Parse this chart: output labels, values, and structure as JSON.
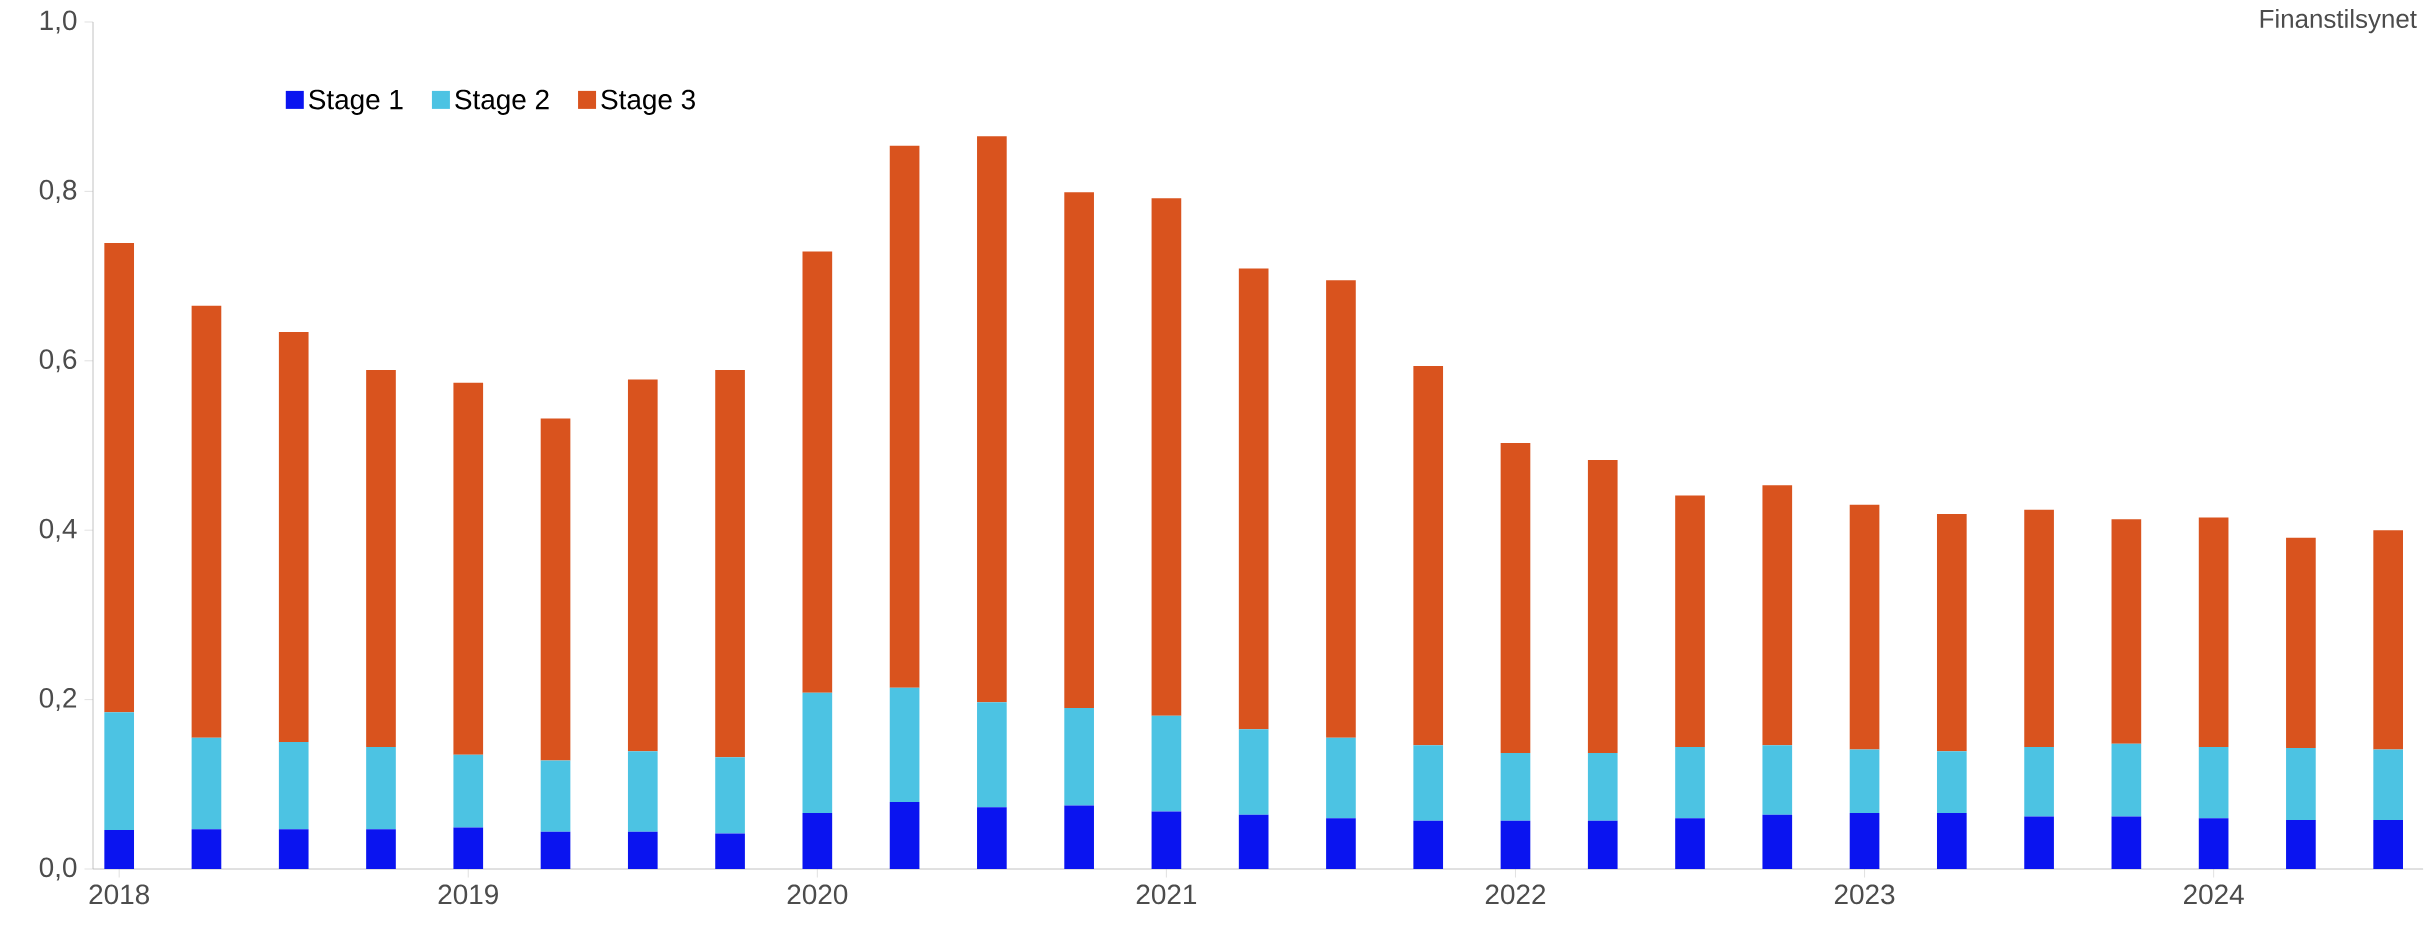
{
  "chart_data": {
    "type": "bar",
    "stacked": true,
    "annotations": [
      "Finanstilsynet"
    ],
    "categories": [
      "2018",
      null,
      null,
      null,
      "2019",
      null,
      null,
      null,
      "2020",
      null,
      null,
      null,
      "2021",
      null,
      null,
      null,
      "2022",
      null,
      null,
      null,
      "2023",
      null,
      null,
      null,
      "2024",
      null,
      null
    ],
    "series": [
      {
        "name": "Stage 1",
        "color": "#0a14f0",
        "values": [
          0.046,
          0.047,
          0.047,
          0.047,
          0.049,
          0.044,
          0.044,
          0.042,
          0.066,
          0.079,
          0.073,
          0.075,
          0.068,
          0.064,
          0.06,
          0.057,
          0.057,
          0.057,
          0.06,
          0.064,
          0.066,
          0.066,
          0.062,
          0.062,
          0.06,
          0.058,
          0.058
        ]
      },
      {
        "name": "Stage 2",
        "color": "#4cc3e3",
        "values": [
          0.139,
          0.108,
          0.103,
          0.097,
          0.086,
          0.084,
          0.095,
          0.09,
          0.142,
          0.135,
          0.124,
          0.115,
          0.113,
          0.101,
          0.095,
          0.089,
          0.08,
          0.08,
          0.084,
          0.082,
          0.075,
          0.073,
          0.082,
          0.086,
          0.084,
          0.085,
          0.083
        ]
      },
      {
        "name": "Stage 3",
        "color": "#d9531e",
        "values": [
          0.554,
          0.51,
          0.484,
          0.445,
          0.439,
          0.404,
          0.439,
          0.457,
          0.521,
          0.64,
          0.668,
          0.609,
          0.611,
          0.544,
          0.54,
          0.448,
          0.366,
          0.346,
          0.297,
          0.307,
          0.289,
          0.28,
          0.28,
          0.265,
          0.271,
          0.248,
          0.259
        ]
      }
    ],
    "ylim": [
      0,
      1
    ],
    "yticks": [
      {
        "value": 0,
        "label": "0,0"
      },
      {
        "value": 0.2,
        "label": "0,2"
      },
      {
        "value": 0.4,
        "label": "0,4"
      },
      {
        "value": 0.6,
        "label": "0,6"
      },
      {
        "value": 0.8,
        "label": "0,8"
      },
      {
        "value": 1,
        "label": "1,0"
      }
    ],
    "legend": "top left"
  }
}
